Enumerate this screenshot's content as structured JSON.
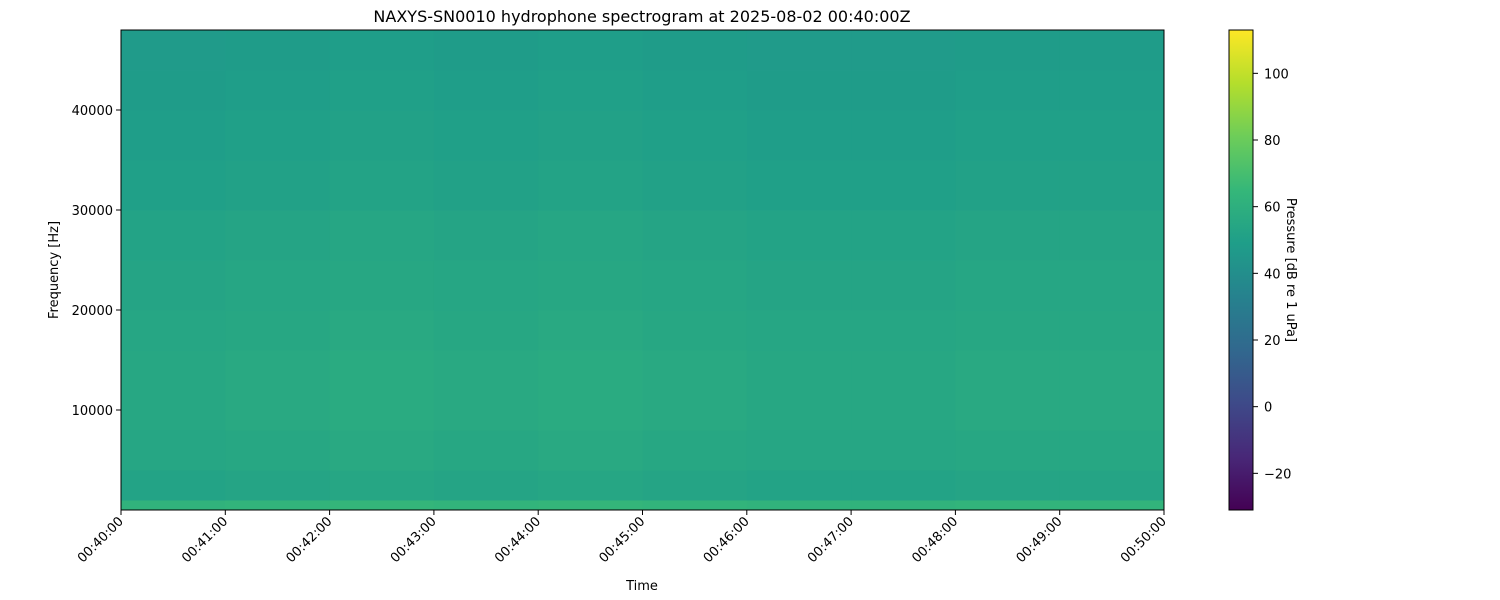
{
  "chart_data": {
    "type": "heatmap",
    "title": "NAXYS-SN0010 hydrophone spectrogram at 2025-08-02 00:40:00Z",
    "xlabel": "Time",
    "ylabel": "Frequency [Hz]",
    "x_ticks": [
      "00:40:00",
      "00:41:00",
      "00:42:00",
      "00:43:00",
      "00:44:00",
      "00:45:00",
      "00:46:00",
      "00:47:00",
      "00:48:00",
      "00:49:00",
      "00:50:00"
    ],
    "y_ticks": [
      10000,
      20000,
      30000,
      40000
    ],
    "ylim": [
      0,
      48000
    ],
    "time_bins": [
      "00:40:00",
      "00:41:00",
      "00:42:00",
      "00:43:00",
      "00:44:00",
      "00:45:00",
      "00:46:00",
      "00:47:00",
      "00:48:00",
      "00:49:00"
    ],
    "freq_bin_edges": [
      0,
      1000,
      4000,
      8000,
      12000,
      16000,
      20000,
      25000,
      30000,
      35000,
      40000,
      44000,
      48000
    ],
    "z": [
      [
        62,
        63,
        64,
        63,
        64,
        63,
        62,
        62,
        63,
        63
      ],
      [
        52,
        53,
        54,
        53,
        54,
        53,
        52,
        52,
        53,
        53
      ],
      [
        54,
        55,
        56,
        55,
        56,
        55,
        54,
        54,
        55,
        55
      ],
      [
        55,
        56,
        57,
        56,
        57,
        56,
        55,
        55,
        56,
        56
      ],
      [
        55,
        56,
        57,
        56,
        57,
        56,
        55,
        55,
        56,
        56
      ],
      [
        54,
        55,
        56,
        55,
        56,
        55,
        54,
        54,
        55,
        55
      ],
      [
        53,
        54,
        55,
        54,
        55,
        54,
        53,
        53,
        54,
        54
      ],
      [
        52,
        53,
        54,
        53,
        54,
        53,
        52,
        52,
        53,
        53
      ],
      [
        50,
        51,
        52,
        51,
        52,
        51,
        50,
        50,
        51,
        51
      ],
      [
        49,
        50,
        51,
        50,
        51,
        50,
        49,
        49,
        50,
        50
      ],
      [
        48,
        49,
        50,
        49,
        50,
        49,
        48,
        48,
        49,
        49
      ],
      [
        47,
        48,
        49,
        48,
        49,
        48,
        47,
        47,
        48,
        48
      ]
    ],
    "colormap": "viridis",
    "colorbar": {
      "label": "Pressure [dB re 1 uPa]",
      "range": [
        -31,
        113
      ],
      "ticks": [
        -20,
        0,
        20,
        40,
        60,
        80,
        100
      ]
    },
    "grid": false
  }
}
